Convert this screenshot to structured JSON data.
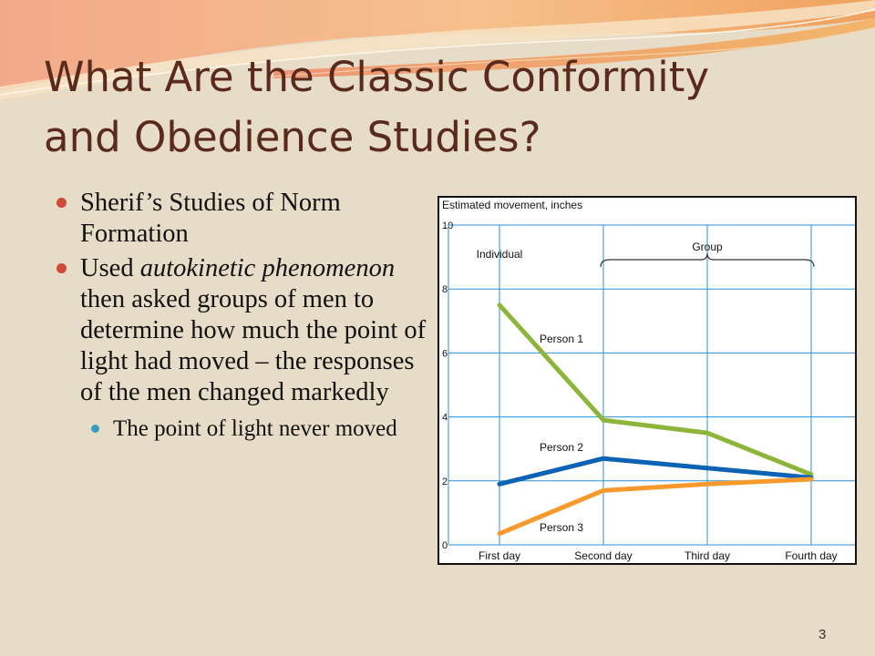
{
  "slide": {
    "title_line1": "What Are the Classic Conformity",
    "title_line2": "and Obedience Studies?",
    "page_number": "3"
  },
  "bullets": {
    "b1": "Sherif’s Studies of Norm Formation",
    "b2_prefix": "Used ",
    "b2_emphasis": "autokinetic phenomenon",
    "b2_suffix": " then asked groups of men to determine how much the point of light had moved – the responses of the men changed markedly",
    "sub1": "The point of light never moved"
  },
  "colors": {
    "background": "#e6dcc7",
    "title": "#5a2a1c",
    "bullet": "#cf4a38",
    "sub_bullet": "#3a9cb8",
    "grid": "#2f8fd8",
    "person1": "#8db53a",
    "person2": "#0b63b5",
    "person3": "#f79a2b"
  },
  "chart_data": {
    "type": "line",
    "ylabel": "Estimated movement, inches",
    "categories": [
      "First day",
      "Second day",
      "Third day",
      "Fourth day"
    ],
    "ylim": [
      0,
      10
    ],
    "yticks": [
      0,
      2,
      4,
      6,
      8,
      10
    ],
    "grid": true,
    "brackets": [
      {
        "label": "Individual",
        "from": "First day",
        "to": "First day"
      },
      {
        "label": "Group",
        "from": "Second day",
        "to": "Fourth day"
      }
    ],
    "series": [
      {
        "name": "Person 1",
        "color": "#8db53a",
        "values": [
          7.5,
          3.9,
          3.5,
          2.2
        ]
      },
      {
        "name": "Person 2",
        "color": "#0b63b5",
        "values": [
          1.9,
          2.7,
          2.4,
          2.1
        ]
      },
      {
        "name": "Person 3",
        "color": "#f79a2b",
        "values": [
          0.35,
          1.7,
          1.9,
          2.05
        ]
      }
    ]
  }
}
